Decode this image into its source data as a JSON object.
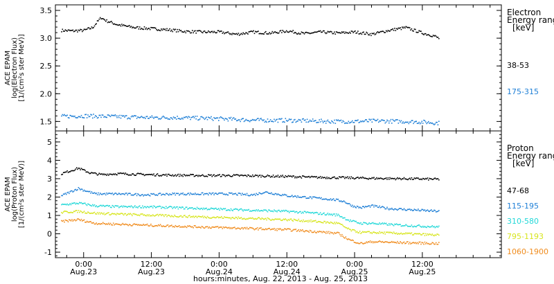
{
  "figure": {
    "x_axis_label": "hours:minutes, Aug. 22, 2013 - Aug. 25, 2013",
    "time_ticks": [
      {
        "hour": 24,
        "time": "0:00",
        "date": "Aug.23"
      },
      {
        "hour": 36,
        "time": "12:00",
        "date": "Aug.23"
      },
      {
        "hour": 48,
        "time": "0:00",
        "date": "Aug.24"
      },
      {
        "hour": 60,
        "time": "12:00",
        "date": "Aug.24"
      },
      {
        "hour": 72,
        "time": "0:00",
        "date": "Aug.25"
      },
      {
        "hour": 84,
        "time": "12:00",
        "date": "Aug.25"
      }
    ]
  },
  "chart_data": [
    {
      "type": "scatter",
      "name": "electron",
      "ylabel": [
        "ACE EPAM",
        "log(Electron Flux)",
        "[1/(cm²s ster MeV)]"
      ],
      "yticks": [
        "1.5",
        "2.0",
        "2.5",
        "3.0",
        "3.5"
      ],
      "ylim": [
        1.33,
        3.6
      ],
      "xlim": [
        19,
        98
      ],
      "legend_title": [
        "Electron",
        "Energy ranges",
        "[keV]"
      ],
      "series": [
        {
          "name": "38-53",
          "color": "#000000",
          "x": [
            20,
            22,
            24,
            25.5,
            27,
            28,
            30,
            33,
            36,
            39,
            42,
            45,
            48,
            51,
            54,
            57,
            60,
            63,
            66,
            69,
            72,
            75,
            78,
            81,
            84,
            86,
            87
          ],
          "y": [
            3.15,
            3.14,
            3.15,
            3.2,
            3.38,
            3.32,
            3.25,
            3.2,
            3.18,
            3.16,
            3.13,
            3.12,
            3.12,
            3.08,
            3.12,
            3.1,
            3.14,
            3.09,
            3.12,
            3.1,
            3.12,
            3.08,
            3.15,
            3.2,
            3.1,
            3.05,
            3.0
          ]
        },
        {
          "name": "175-315",
          "color": "#1e7fd6",
          "x": [
            20,
            24,
            28,
            32,
            36,
            40,
            44,
            48,
            52,
            56,
            60,
            64,
            68,
            72,
            76,
            80,
            84,
            87
          ],
          "y": [
            1.6,
            1.61,
            1.6,
            1.59,
            1.58,
            1.58,
            1.57,
            1.56,
            1.54,
            1.53,
            1.53,
            1.52,
            1.51,
            1.51,
            1.52,
            1.51,
            1.5,
            1.48
          ]
        }
      ]
    },
    {
      "type": "scatter",
      "name": "proton",
      "ylabel": [
        "ACE EPAM",
        "log(Proton Flux)",
        "[1/(cm²s ster MeV)]"
      ],
      "yticks": [
        "-1",
        "0",
        "1",
        "2",
        "3",
        "4",
        "5"
      ],
      "ylim": [
        -1.3,
        5.6
      ],
      "xlim": [
        19,
        98
      ],
      "legend_title": [
        "Proton",
        "Energy ranges",
        "[keV]"
      ],
      "series": [
        {
          "name": "47-68",
          "color": "#000000",
          "x": [
            20,
            22,
            23,
            25,
            27,
            30,
            35,
            40,
            45,
            50,
            55,
            60,
            65,
            70,
            75,
            80,
            87
          ],
          "y": [
            3.3,
            3.5,
            3.6,
            3.35,
            3.25,
            3.3,
            3.25,
            3.22,
            3.2,
            3.2,
            3.18,
            3.15,
            3.1,
            3.08,
            3.05,
            3.03,
            3.0
          ]
        },
        {
          "name": "115-195",
          "color": "#1e7fd6",
          "x": [
            20,
            23,
            26,
            30,
            35,
            40,
            45,
            50,
            54,
            56,
            60,
            64,
            68,
            70,
            71.5,
            73,
            75,
            78,
            81,
            84,
            87
          ],
          "y": [
            2.1,
            2.5,
            2.2,
            2.2,
            2.15,
            2.2,
            2.2,
            2.2,
            2.15,
            2.3,
            2.1,
            2.0,
            1.9,
            1.8,
            1.55,
            1.45,
            1.55,
            1.4,
            1.35,
            1.3,
            1.25
          ]
        },
        {
          "name": "310-580",
          "color": "#22d8d8",
          "x": [
            20,
            23,
            26,
            30,
            35,
            40,
            45,
            50,
            55,
            60,
            65,
            69,
            71,
            73,
            75,
            80,
            87
          ],
          "y": [
            1.6,
            1.7,
            1.55,
            1.5,
            1.5,
            1.45,
            1.4,
            1.35,
            1.3,
            1.25,
            1.15,
            1.05,
            0.75,
            0.6,
            0.6,
            0.5,
            0.4
          ]
        },
        {
          "name": "795-1193",
          "color": "#d7e51e",
          "x": [
            20,
            23,
            26,
            30,
            35,
            40,
            45,
            50,
            55,
            60,
            65,
            69,
            71,
            73,
            75,
            80,
            87
          ],
          "y": [
            1.2,
            1.25,
            1.15,
            1.1,
            1.05,
            1.0,
            0.95,
            0.9,
            0.85,
            0.8,
            0.7,
            0.6,
            0.25,
            0.1,
            0.1,
            0.05,
            -0.05
          ]
        },
        {
          "name": "1060-1900",
          "color": "#f08c1e",
          "x": [
            20,
            23,
            26,
            30,
            35,
            40,
            45,
            50,
            55,
            60,
            65,
            69,
            71,
            73,
            75,
            80,
            87
          ],
          "y": [
            0.7,
            0.8,
            0.6,
            0.55,
            0.5,
            0.45,
            0.4,
            0.35,
            0.3,
            0.25,
            0.15,
            0.05,
            -0.3,
            -0.5,
            -0.4,
            -0.45,
            -0.5
          ]
        }
      ]
    }
  ]
}
